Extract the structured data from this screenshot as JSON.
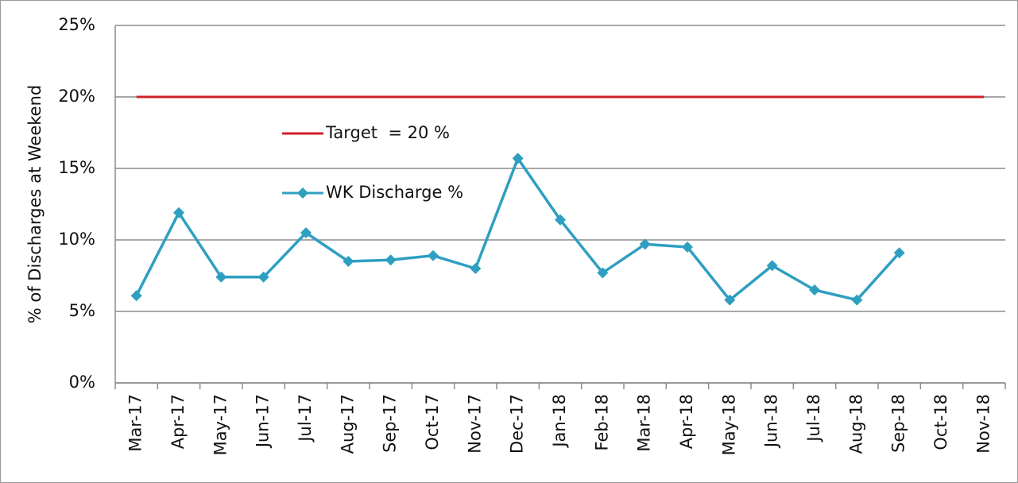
{
  "chart_data": {
    "type": "line",
    "y_label": "% of Discharges at Weekend",
    "categories": [
      "Mar-17",
      "Apr-17",
      "May-17",
      "Jun-17",
      "Jul-17",
      "Aug-17",
      "Sep-17",
      "Oct-17",
      "Nov-17",
      "Dec-17",
      "Jan-18",
      "Feb-18",
      "Mar-18",
      "Apr-18",
      "May-18",
      "Jun-18",
      "Jul-18",
      "Aug-18",
      "Sep-18",
      "Oct-18",
      "Nov-18"
    ],
    "series": [
      {
        "name": "Target  = 20 %",
        "color": "#d0202a",
        "marker": "none",
        "values": [
          20,
          20,
          20,
          20,
          20,
          20,
          20,
          20,
          20,
          20,
          20,
          20,
          20,
          20,
          20,
          20,
          20,
          20,
          20,
          20,
          20
        ]
      },
      {
        "name": "WK Discharge %",
        "color": "#2e9fc0",
        "marker": "diamond",
        "values": [
          6.1,
          11.9,
          7.4,
          7.4,
          10.5,
          8.5,
          8.6,
          8.9,
          8.0,
          15.7,
          11.4,
          7.7,
          9.7,
          9.5,
          5.8,
          8.2,
          6.5,
          5.8,
          9.1,
          null,
          null
        ]
      }
    ],
    "ylim": [
      0,
      25
    ],
    "yticks": [
      {
        "value": 0,
        "label": "0%"
      },
      {
        "value": 5,
        "label": "5%"
      },
      {
        "value": 10,
        "label": "10%"
      },
      {
        "value": 15,
        "label": "15%"
      },
      {
        "value": 20,
        "label": "20%"
      },
      {
        "value": 25,
        "label": "25%"
      }
    ],
    "grid": true
  }
}
